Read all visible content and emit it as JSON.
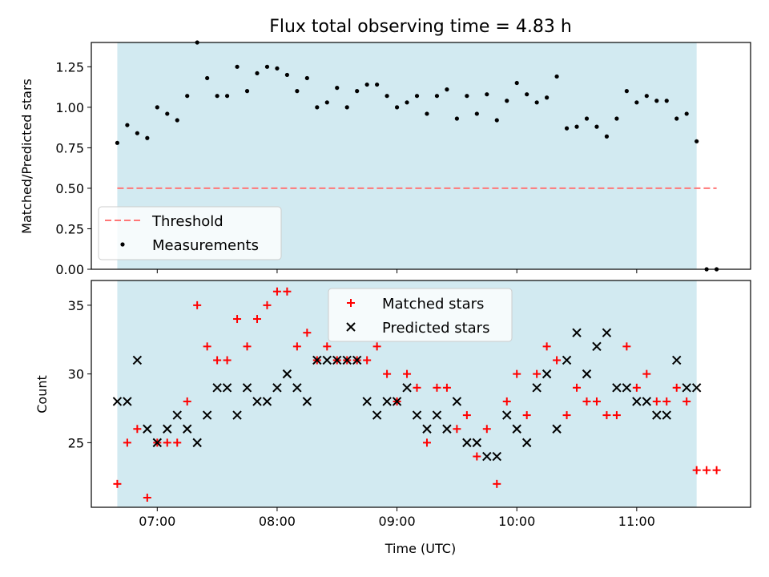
{
  "title": "Flux total observing time = 4.83 h",
  "colors": {
    "shade": "#add8e6",
    "threshold": "#ff7777",
    "matched": "#ff0000",
    "predicted": "#000000",
    "measurement": "#000000"
  },
  "chart_data": [
    {
      "type": "scatter",
      "ylabel": "Matched/Predicted stars",
      "ylim": [
        0,
        1.4
      ],
      "yticks": [
        "0.00",
        "0.25",
        "0.50",
        "0.75",
        "1.00",
        "1.25"
      ],
      "yticks_values": [
        0,
        0.25,
        0.5,
        0.75,
        1.0,
        1.25
      ],
      "xlim": [
        "06:27",
        "11:57"
      ],
      "observing_window": [
        "06:40",
        "11:30"
      ],
      "threshold": {
        "name": "Threshold",
        "y": 0.5,
        "x": [
          "06:40",
          "11:40"
        ]
      },
      "legend": {
        "entries": [
          "Threshold",
          "Measurements"
        ],
        "location": "lower-left"
      },
      "series": [
        {
          "name": "Measurements",
          "x": [
            "06:40",
            "06:45",
            "06:50",
            "06:55",
            "07:00",
            "07:05",
            "07:10",
            "07:15",
            "07:20",
            "07:25",
            "07:30",
            "07:35",
            "07:40",
            "07:45",
            "07:50",
            "07:55",
            "08:00",
            "08:05",
            "08:10",
            "08:15",
            "08:20",
            "08:25",
            "08:30",
            "08:35",
            "08:40",
            "08:45",
            "08:50",
            "08:55",
            "09:00",
            "09:05",
            "09:10",
            "09:15",
            "09:20",
            "09:25",
            "09:30",
            "09:35",
            "09:40",
            "09:45",
            "09:50",
            "09:55",
            "10:00",
            "10:05",
            "10:10",
            "10:15",
            "10:20",
            "10:25",
            "10:30",
            "10:35",
            "10:40",
            "10:45",
            "10:50",
            "10:55",
            "11:00",
            "11:05",
            "11:10",
            "11:15",
            "11:20",
            "11:25",
            "11:30",
            "11:35",
            "11:40"
          ],
          "y": [
            0.78,
            0.89,
            0.84,
            0.81,
            1.0,
            0.96,
            0.92,
            1.07,
            1.4,
            1.18,
            1.07,
            1.07,
            1.25,
            1.1,
            1.21,
            1.25,
            1.24,
            1.2,
            1.1,
            1.18,
            1.0,
            1.03,
            1.12,
            1.0,
            1.1,
            1.14,
            1.14,
            1.07,
            1.0,
            1.03,
            1.07,
            0.96,
            1.07,
            1.11,
            0.93,
            1.07,
            0.96,
            1.08,
            0.92,
            1.04,
            1.15,
            1.08,
            1.03,
            1.06,
            1.19,
            0.87,
            0.88,
            0.93,
            0.88,
            0.82,
            0.93,
            1.1,
            1.03,
            1.07,
            1.04,
            1.04,
            0.93,
            0.96,
            0.79,
            0.0,
            0.0
          ]
        }
      ]
    },
    {
      "type": "scatter",
      "xlabel": "Time (UTC)",
      "ylabel": "Count",
      "ylim": [
        20.3,
        36.8
      ],
      "yticks": [
        "25",
        "30",
        "35"
      ],
      "yticks_values": [
        25,
        30,
        35
      ],
      "xlim": [
        "06:27",
        "11:57"
      ],
      "xticks": [
        "07:00",
        "08:00",
        "09:00",
        "10:00",
        "11:00"
      ],
      "observing_window": [
        "06:40",
        "11:30"
      ],
      "legend": {
        "entries": [
          "Matched stars",
          "Predicted stars"
        ],
        "location": "top-center"
      },
      "series": [
        {
          "name": "Matched stars",
          "marker": "plus",
          "x": [
            "06:40",
            "06:45",
            "06:50",
            "06:55",
            "07:00",
            "07:05",
            "07:10",
            "07:15",
            "07:20",
            "07:25",
            "07:30",
            "07:35",
            "07:40",
            "07:45",
            "07:50",
            "07:55",
            "08:00",
            "08:05",
            "08:10",
            "08:15",
            "08:20",
            "08:25",
            "08:30",
            "08:35",
            "08:40",
            "08:45",
            "08:50",
            "08:55",
            "09:00",
            "09:05",
            "09:10",
            "09:15",
            "09:20",
            "09:25",
            "09:30",
            "09:35",
            "09:40",
            "09:45",
            "09:50",
            "09:55",
            "10:00",
            "10:05",
            "10:10",
            "10:15",
            "10:20",
            "10:25",
            "10:30",
            "10:35",
            "10:40",
            "10:45",
            "10:50",
            "10:55",
            "11:00",
            "11:05",
            "11:10",
            "11:15",
            "11:20",
            "11:25",
            "11:30",
            "11:35",
            "11:40"
          ],
          "y": [
            22,
            25,
            26,
            21,
            25,
            25,
            25,
            28,
            35,
            32,
            31,
            31,
            34,
            32,
            34,
            35,
            36,
            36,
            32,
            33,
            31,
            32,
            31,
            31,
            31,
            31,
            32,
            30,
            28,
            30,
            29,
            25,
            29,
            29,
            26,
            27,
            24,
            26,
            22,
            28,
            30,
            27,
            30,
            32,
            31,
            27,
            29,
            28,
            28,
            27,
            27,
            32,
            29,
            30,
            28,
            28,
            29,
            28,
            23,
            23,
            23
          ]
        },
        {
          "name": "Predicted stars",
          "marker": "x",
          "x": [
            "06:40",
            "06:45",
            "06:50",
            "06:55",
            "07:00",
            "07:05",
            "07:10",
            "07:15",
            "07:20",
            "07:25",
            "07:30",
            "07:35",
            "07:40",
            "07:45",
            "07:50",
            "07:55",
            "08:00",
            "08:05",
            "08:10",
            "08:15",
            "08:20",
            "08:25",
            "08:30",
            "08:35",
            "08:40",
            "08:45",
            "08:50",
            "08:55",
            "09:00",
            "09:05",
            "09:10",
            "09:15",
            "09:20",
            "09:25",
            "09:30",
            "09:35",
            "09:40",
            "09:45",
            "09:50",
            "09:55",
            "10:00",
            "10:05",
            "10:10",
            "10:15",
            "10:20",
            "10:25",
            "10:30",
            "10:35",
            "10:40",
            "10:45",
            "10:50",
            "10:55",
            "11:00",
            "11:05",
            "11:10",
            "11:15",
            "11:20",
            "11:25",
            "11:30"
          ],
          "y": [
            28,
            28,
            31,
            26,
            25,
            26,
            27,
            26,
            25,
            27,
            29,
            29,
            27,
            29,
            28,
            28,
            29,
            30,
            29,
            28,
            31,
            31,
            31,
            31,
            31,
            28,
            27,
            28,
            28,
            29,
            27,
            26,
            27,
            26,
            28,
            25,
            25,
            24,
            24,
            27,
            26,
            25,
            29,
            30,
            26,
            31,
            33,
            30,
            32,
            33,
            29,
            29,
            28,
            28,
            27,
            27,
            31,
            29,
            29
          ]
        }
      ]
    }
  ]
}
